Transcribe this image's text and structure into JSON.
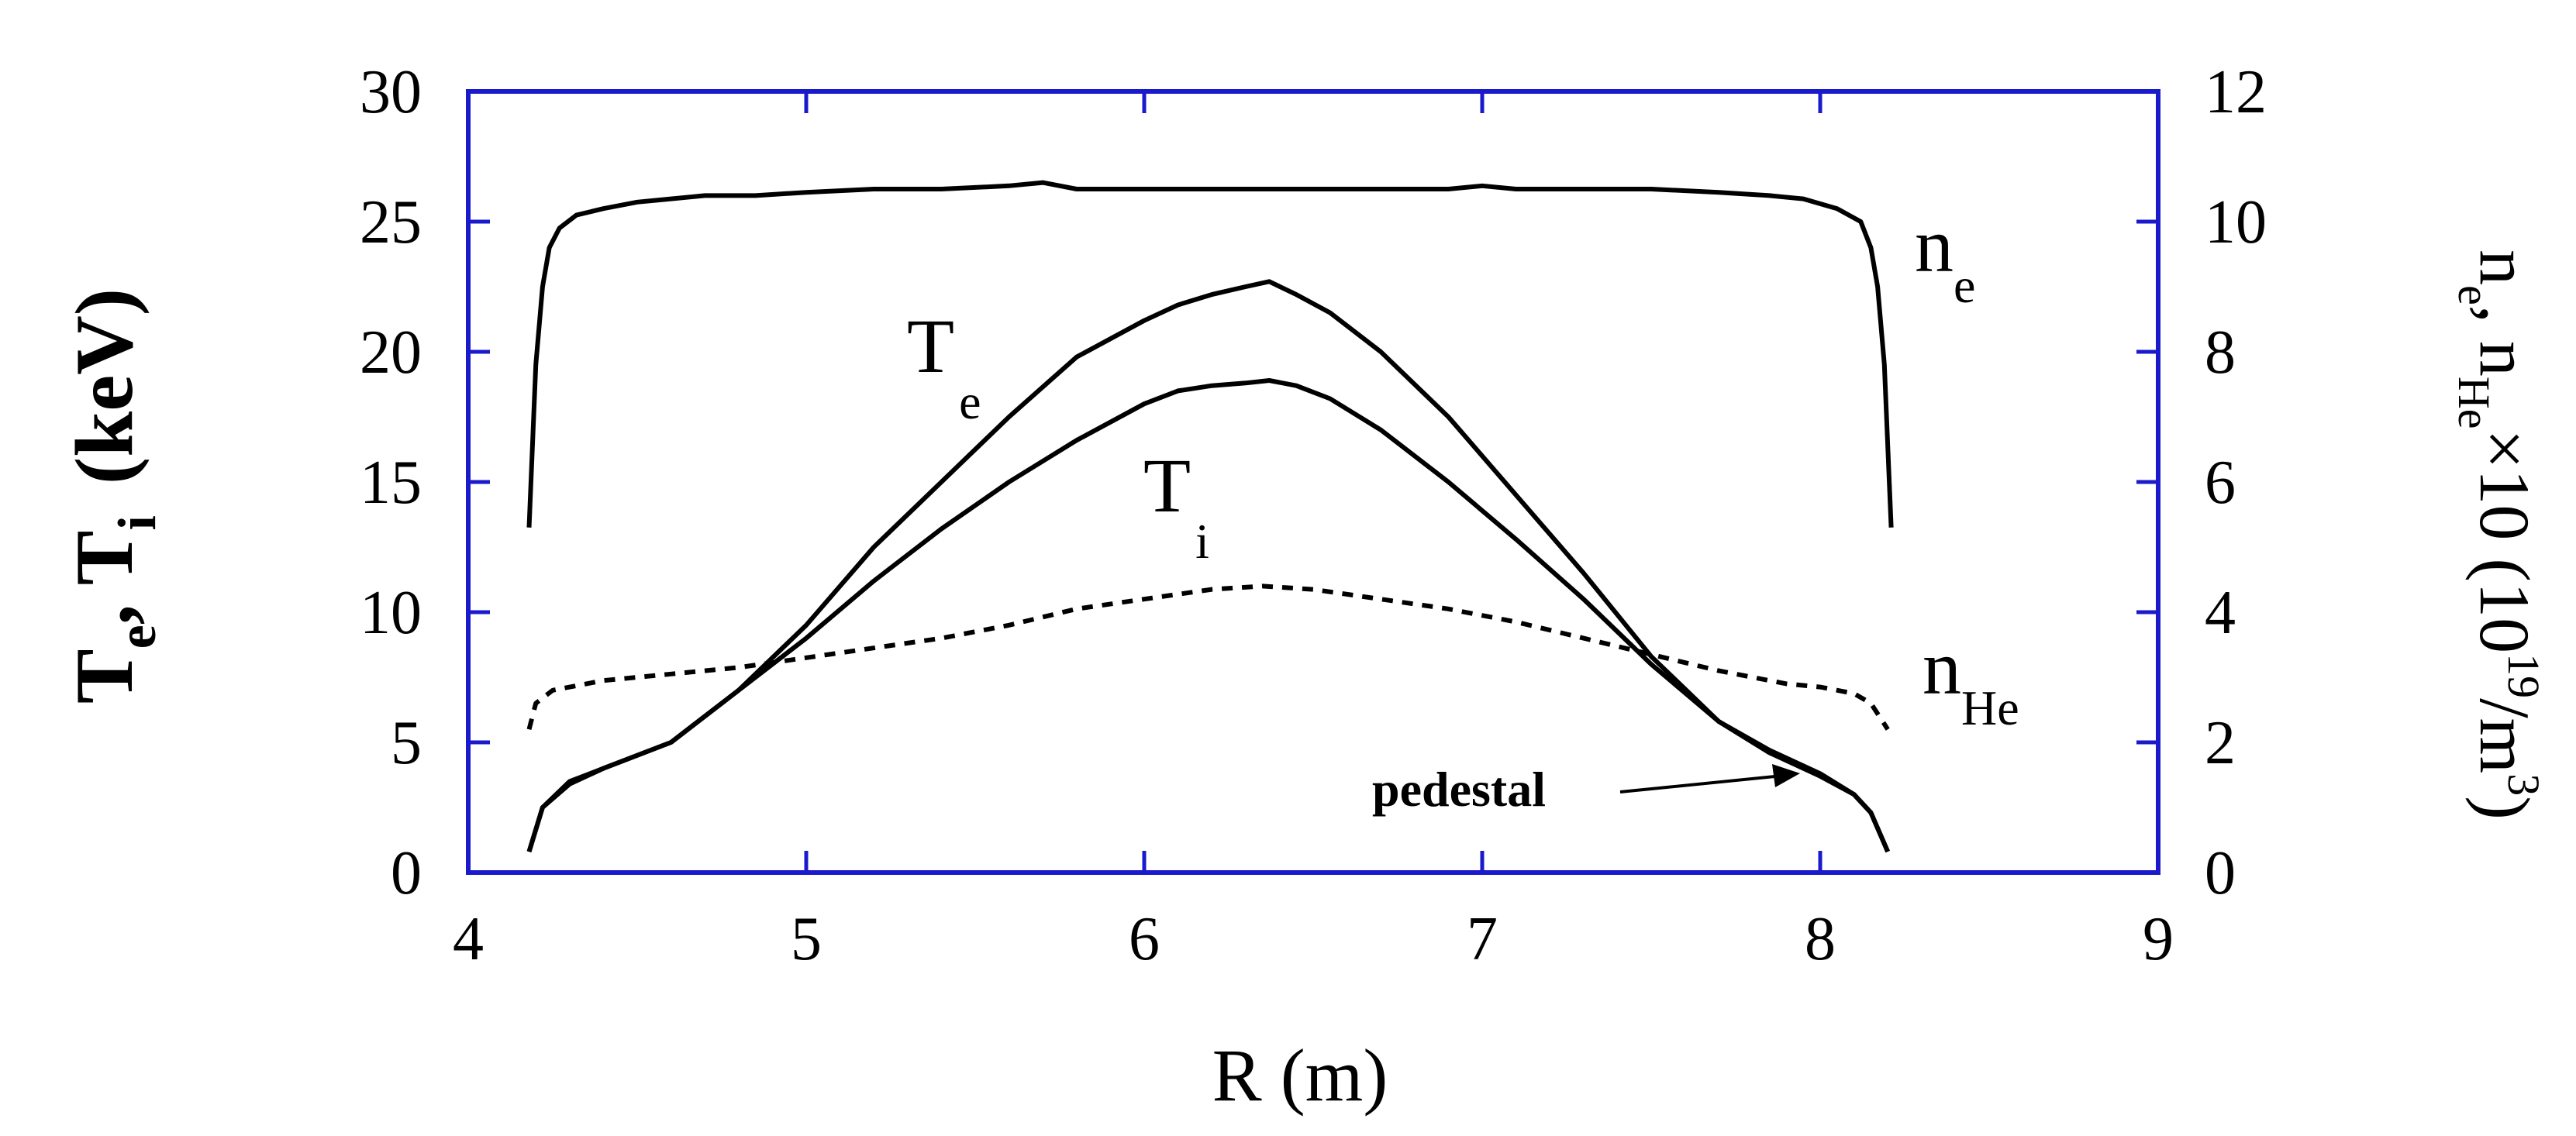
{
  "chart_data": {
    "type": "line",
    "xlabel": "R (m)",
    "ylabel_left": {
      "main": "T",
      "sub1": "e",
      "sep": ",  T",
      "sub2": "i",
      "unit": "(keV)"
    },
    "ylabel_right": {
      "p1": "n",
      "s1": "e",
      "p2": ", n",
      "s2": "He",
      "p3": "×10  (10",
      "sup": "19",
      "p4": "/m",
      "sup2": "3",
      "p5": ")"
    },
    "xlim": [
      4,
      9
    ],
    "ylim_left": [
      0,
      30
    ],
    "ylim_right": [
      0,
      12
    ],
    "x_ticks": [
      "4",
      "5",
      "6",
      "7",
      "8",
      "9"
    ],
    "y_ticks_left": [
      "0",
      "5",
      "10",
      "15",
      "20",
      "25",
      "30"
    ],
    "y_ticks_right": [
      "0",
      "2",
      "4",
      "6",
      "8",
      "10",
      "12"
    ],
    "grid": false,
    "axis_color": "#1a1acc",
    "series": [
      {
        "name": "n_e",
        "label": "n",
        "label_sub": "e",
        "axis": "right",
        "style": "solid",
        "x": [
          4.18,
          4.2,
          4.22,
          4.24,
          4.27,
          4.32,
          4.4,
          4.5,
          4.6,
          4.7,
          4.85,
          5.0,
          5.2,
          5.4,
          5.6,
          5.7,
          5.8,
          6.0,
          6.2,
          6.4,
          6.6,
          6.8,
          6.9,
          7.0,
          7.1,
          7.3,
          7.5,
          7.7,
          7.85,
          7.95,
          8.05,
          8.12,
          8.15,
          8.17,
          8.19,
          8.21
        ],
        "y": [
          5.3,
          7.8,
          9.0,
          9.6,
          9.9,
          10.1,
          10.2,
          10.3,
          10.35,
          10.4,
          10.4,
          10.45,
          10.5,
          10.5,
          10.55,
          10.6,
          10.5,
          10.5,
          10.5,
          10.5,
          10.5,
          10.5,
          10.5,
          10.55,
          10.5,
          10.5,
          10.5,
          10.45,
          10.4,
          10.35,
          10.2,
          10.0,
          9.6,
          9.0,
          7.8,
          5.3
        ]
      },
      {
        "name": "T_e",
        "label": "T",
        "label_sub": "e",
        "axis": "left",
        "style": "solid",
        "x": [
          4.18,
          4.22,
          4.3,
          4.4,
          4.6,
          4.8,
          5.0,
          5.2,
          5.4,
          5.6,
          5.8,
          6.0,
          6.1,
          6.2,
          6.3,
          6.37,
          6.45,
          6.55,
          6.7,
          6.9,
          7.1,
          7.3,
          7.5,
          7.7,
          7.85,
          8.0,
          8.1,
          8.15,
          8.2
        ],
        "y": [
          0.8,
          2.5,
          3.5,
          4.0,
          5.0,
          7.0,
          9.5,
          12.5,
          15.0,
          17.5,
          19.8,
          21.2,
          21.8,
          22.2,
          22.5,
          22.7,
          22.2,
          21.5,
          20.0,
          17.5,
          14.5,
          11.5,
          8.3,
          5.8,
          4.7,
          3.8,
          3.0,
          2.3,
          0.8
        ]
      },
      {
        "name": "T_i",
        "label": "T",
        "label_sub": "i",
        "axis": "left",
        "style": "solid",
        "x": [
          4.18,
          4.22,
          4.3,
          4.4,
          4.6,
          4.8,
          5.0,
          5.2,
          5.4,
          5.6,
          5.8,
          6.0,
          6.1,
          6.2,
          6.3,
          6.37,
          6.45,
          6.55,
          6.7,
          6.9,
          7.1,
          7.3,
          7.5,
          7.7,
          7.85,
          8.0,
          8.1,
          8.15,
          8.2
        ],
        "y": [
          0.8,
          2.5,
          3.4,
          4.0,
          5.0,
          7.0,
          9.0,
          11.2,
          13.2,
          15.0,
          16.6,
          18.0,
          18.5,
          18.7,
          18.8,
          18.9,
          18.7,
          18.2,
          17.0,
          15.0,
          12.8,
          10.5,
          8.0,
          5.8,
          4.6,
          3.7,
          3.0,
          2.3,
          0.8
        ]
      },
      {
        "name": "n_He",
        "label": "n",
        "label_sub": "He",
        "axis": "right",
        "style": "dashed",
        "x": [
          4.18,
          4.2,
          4.25,
          4.4,
          4.6,
          4.8,
          5.0,
          5.2,
          5.4,
          5.6,
          5.8,
          6.0,
          6.2,
          6.35,
          6.5,
          6.7,
          6.9,
          7.1,
          7.3,
          7.5,
          7.7,
          7.9,
          8.0,
          8.1,
          8.15,
          8.2
        ],
        "y": [
          2.2,
          2.6,
          2.8,
          2.95,
          3.05,
          3.15,
          3.3,
          3.45,
          3.6,
          3.8,
          4.05,
          4.2,
          4.35,
          4.4,
          4.35,
          4.2,
          4.05,
          3.85,
          3.6,
          3.35,
          3.1,
          2.9,
          2.85,
          2.75,
          2.6,
          2.2
        ]
      }
    ],
    "annotations": [
      {
        "text": "pedestal",
        "arrow_to": [
          8.0,
          4.5
        ]
      }
    ]
  }
}
